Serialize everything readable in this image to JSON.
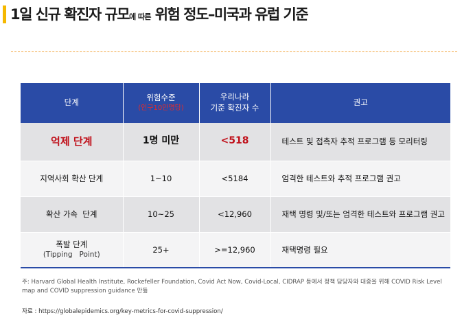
{
  "title": {
    "part1": "1일 신규 확진자 규모",
    "part2": "에 따른",
    "part3": " 위험 정도",
    "part4": "–미국과 유럽 기준"
  },
  "table": {
    "headers": {
      "stage": "단계",
      "risk_level": "위험수준",
      "risk_level_sub": "(인구10만명당)",
      "korea_line1": "우리나라",
      "korea_line2": "기준 확진자 수",
      "advice": "권고"
    },
    "rows": [
      {
        "stage": "억제 단계",
        "stage_sub": "",
        "level": "1명 미만",
        "korea": "<518",
        "advice": "테스트 및 접촉자 추적 프로그램 등 모리터링"
      },
      {
        "stage": "지역사회 확산 단계",
        "stage_sub": "",
        "level": "1~10",
        "korea": "<5184",
        "advice": "엄격한 테스트와 추적 프로그램 권고"
      },
      {
        "stage": "확산 가속  단계",
        "stage_sub": "",
        "level": "10~25",
        "korea": "<12,960",
        "advice": "재택 명령 및/또는 엄격한 테스트와 프로그램 권고"
      },
      {
        "stage": "폭발 단계",
        "stage_sub": "(Tipping   Point)",
        "level": "25+",
        "korea": ">=12,960",
        "advice": "재택명령 필요"
      }
    ]
  },
  "note": "주: Harvard Global Health Institute, Rockefeller Foundation, Covid Act Now, Covid-Local, CIDRAP 등에서 정책 담당자와 대중을 위해 COVID Risk Level map and COVID suppression guidance 만듦",
  "source": "자료 : https://globalepidemics.org/key-metrics-for-covid-suppression/",
  "colors": {
    "header_bg": "#2a4ba6",
    "accent": "#f5b800",
    "emphasis_red": "#c0101a",
    "dash_line": "#f2a33a"
  }
}
